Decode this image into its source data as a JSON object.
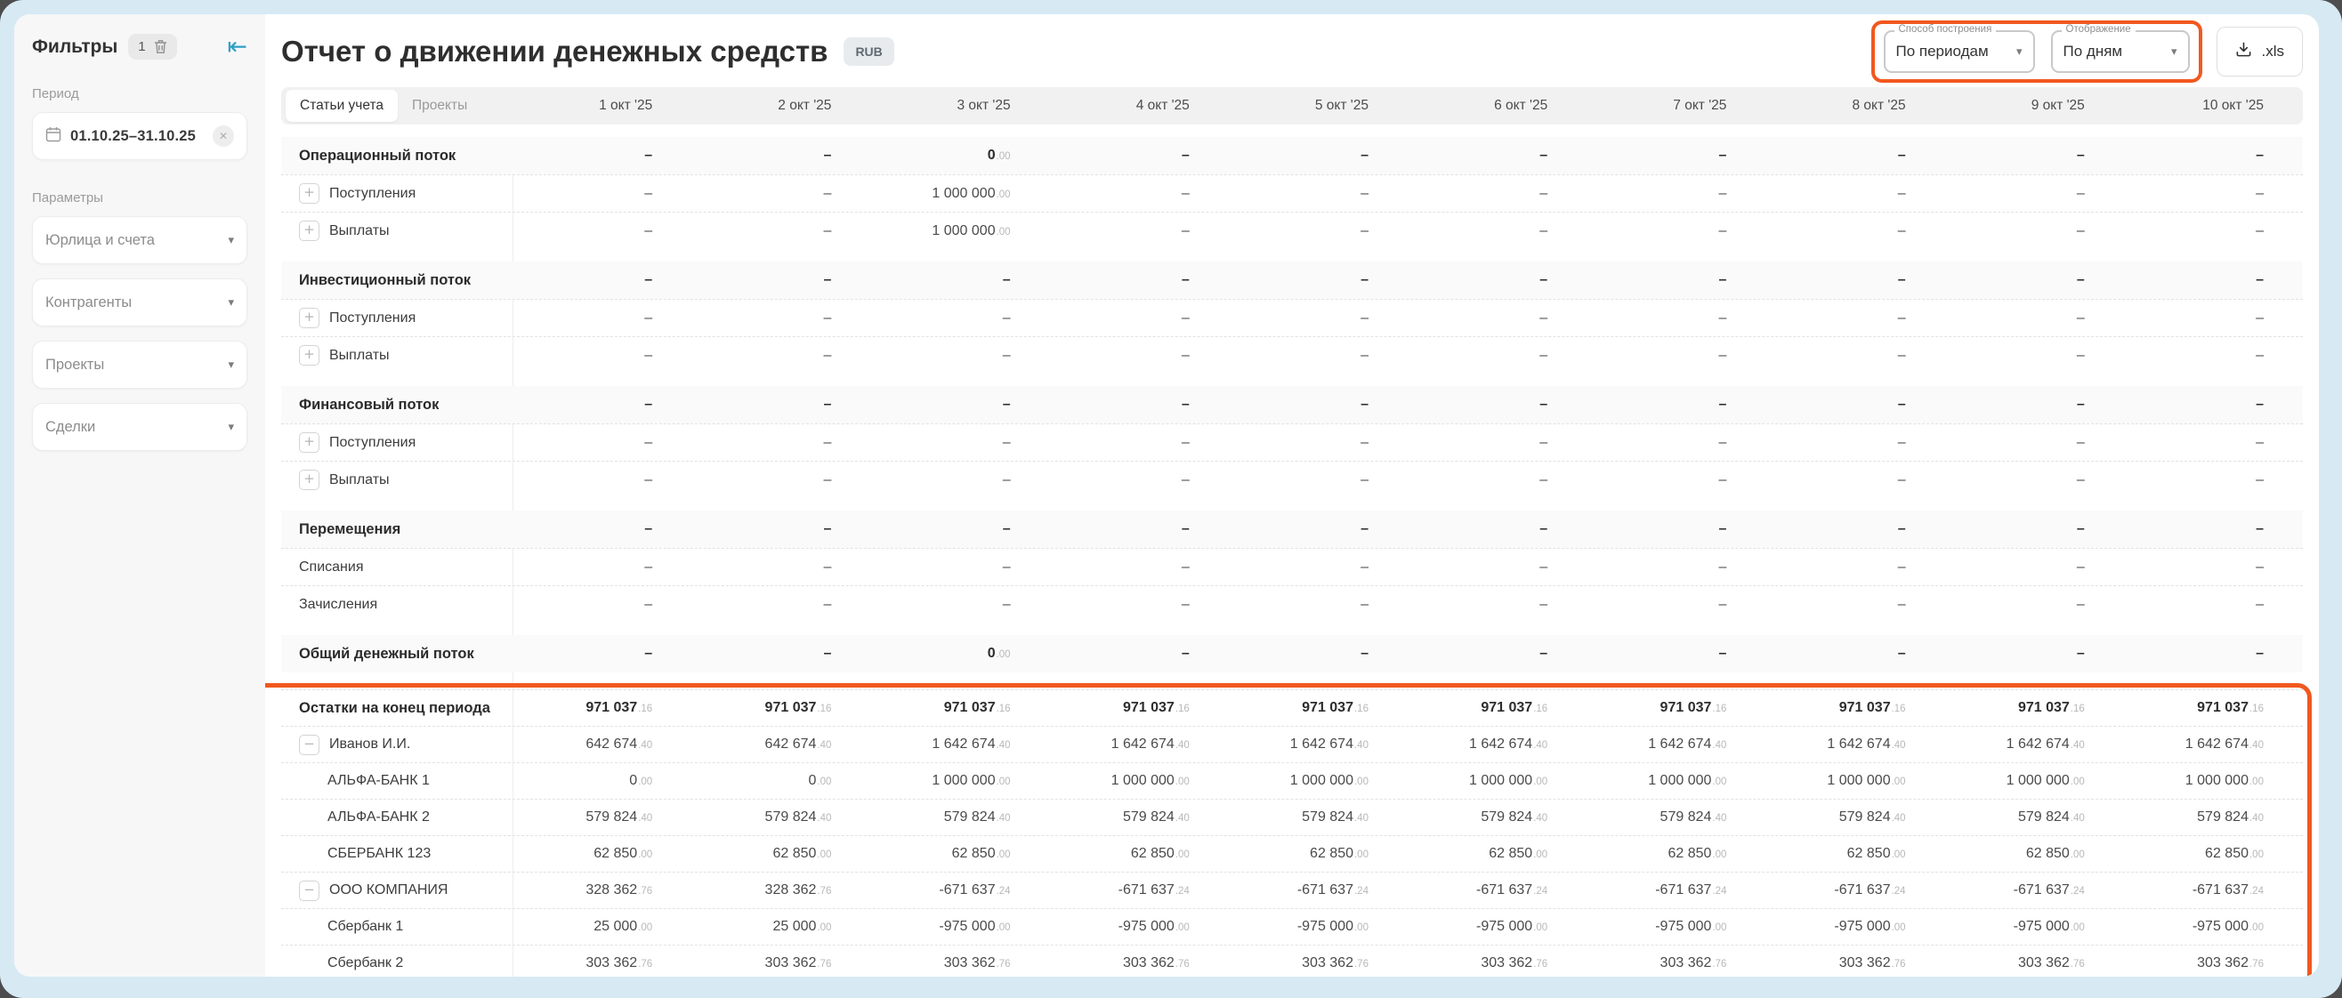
{
  "colors": {
    "accent_orange": "#F1581F",
    "accent_teal": "#2E9FC6",
    "frame_blue": "#D7EAF4"
  },
  "sidebar": {
    "title": "Фильтры",
    "filter_count": "1",
    "period_label": "Период",
    "period_value": "01.10.25–31.10.25",
    "params_label": "Параметры",
    "dropdowns": [
      "Юрлица и счета",
      "Контрагенты",
      "Проекты",
      "Сделки"
    ]
  },
  "header": {
    "title": "Отчет о движении денежных средств",
    "currency_badge": "RUB",
    "build_mode": {
      "label": "Способ построения",
      "value": "По периодам"
    },
    "display_mode": {
      "label": "Отображение",
      "value": "По дням"
    },
    "export_label": ".xls"
  },
  "table": {
    "tabs": [
      {
        "label": "Статьи учета",
        "active": true
      },
      {
        "label": "Проекты",
        "active": false
      }
    ],
    "columns": [
      "1 окт '25",
      "2 окт '25",
      "3 окт '25",
      "4 окт '25",
      "5 окт '25",
      "6 окт '25",
      "7 окт '25",
      "8 окт '25",
      "9 окт '25",
      "10 окт '25"
    ],
    "sections": [
      {
        "rows": [
          {
            "type": "header",
            "bold": true,
            "label": "Операционный поток",
            "icon": null,
            "indent": 0,
            "values": [
              "–",
              "–",
              "0.00",
              "–",
              "–",
              "–",
              "–",
              "–",
              "–",
              "–"
            ]
          },
          {
            "type": "item",
            "bold": false,
            "label": "Поступления",
            "icon": "plus",
            "indent": 0,
            "values": [
              "–",
              "–",
              "1 000 000.00",
              "–",
              "–",
              "–",
              "–",
              "–",
              "–",
              "–"
            ]
          },
          {
            "type": "item",
            "bold": false,
            "label": "Выплаты",
            "icon": "plus",
            "indent": 0,
            "values": [
              "–",
              "–",
              "1 000 000.00",
              "–",
              "–",
              "–",
              "–",
              "–",
              "–",
              "–"
            ]
          }
        ]
      },
      {
        "rows": [
          {
            "type": "header",
            "bold": true,
            "label": "Инвестиционный поток",
            "icon": null,
            "indent": 0,
            "values": [
              "–",
              "–",
              "–",
              "–",
              "–",
              "–",
              "–",
              "–",
              "–",
              "–"
            ]
          },
          {
            "type": "item",
            "bold": false,
            "label": "Поступления",
            "icon": "plus",
            "indent": 0,
            "values": [
              "–",
              "–",
              "–",
              "–",
              "–",
              "–",
              "–",
              "–",
              "–",
              "–"
            ]
          },
          {
            "type": "item",
            "bold": false,
            "label": "Выплаты",
            "icon": "plus",
            "indent": 0,
            "values": [
              "–",
              "–",
              "–",
              "–",
              "–",
              "–",
              "–",
              "–",
              "–",
              "–"
            ]
          }
        ]
      },
      {
        "rows": [
          {
            "type": "header",
            "bold": true,
            "label": "Финансовый поток",
            "icon": null,
            "indent": 0,
            "values": [
              "–",
              "–",
              "–",
              "–",
              "–",
              "–",
              "–",
              "–",
              "–",
              "–"
            ]
          },
          {
            "type": "item",
            "bold": false,
            "label": "Поступления",
            "icon": "plus",
            "indent": 0,
            "values": [
              "–",
              "–",
              "–",
              "–",
              "–",
              "–",
              "–",
              "–",
              "–",
              "–"
            ]
          },
          {
            "type": "item",
            "bold": false,
            "label": "Выплаты",
            "icon": "plus",
            "indent": 0,
            "values": [
              "–",
              "–",
              "–",
              "–",
              "–",
              "–",
              "–",
              "–",
              "–",
              "–"
            ]
          }
        ]
      },
      {
        "rows": [
          {
            "type": "header",
            "bold": true,
            "label": "Перемещения",
            "icon": null,
            "indent": 0,
            "values": [
              "–",
              "–",
              "–",
              "–",
              "–",
              "–",
              "–",
              "–",
              "–",
              "–"
            ]
          },
          {
            "type": "item",
            "bold": false,
            "label": "Списания",
            "icon": null,
            "indent": 0,
            "values": [
              "–",
              "–",
              "–",
              "–",
              "–",
              "–",
              "–",
              "–",
              "–",
              "–"
            ]
          },
          {
            "type": "item",
            "bold": false,
            "label": "Зачисления",
            "icon": null,
            "indent": 0,
            "values": [
              "–",
              "–",
              "–",
              "–",
              "–",
              "–",
              "–",
              "–",
              "–",
              "–"
            ]
          }
        ]
      },
      {
        "rows": [
          {
            "type": "header",
            "bold": true,
            "label": "Общий денежный поток",
            "icon": null,
            "indent": 0,
            "values": [
              "–",
              "–",
              "0.00",
              "–",
              "–",
              "–",
              "–",
              "–",
              "–",
              "–"
            ]
          }
        ]
      },
      {
        "highlight": true,
        "rows": [
          {
            "type": "header",
            "bold": true,
            "label": "Остатки на конец периода",
            "icon": null,
            "indent": 0,
            "values": [
              "971 037.16",
              "971 037.16",
              "971 037.16",
              "971 037.16",
              "971 037.16",
              "971 037.16",
              "971 037.16",
              "971 037.16",
              "971 037.16",
              "971 037.16"
            ]
          },
          {
            "type": "item",
            "bold": false,
            "label": "Иванов И.И.",
            "icon": "minus",
            "indent": 0,
            "values": [
              "642 674.40",
              "642 674.40",
              "1 642 674.40",
              "1 642 674.40",
              "1 642 674.40",
              "1 642 674.40",
              "1 642 674.40",
              "1 642 674.40",
              "1 642 674.40",
              "1 642 674.40"
            ]
          },
          {
            "type": "item",
            "bold": false,
            "label": "АЛЬФА-БАНК 1",
            "icon": null,
            "indent": 1,
            "values": [
              "0.00",
              "0.00",
              "1 000 000.00",
              "1 000 000.00",
              "1 000 000.00",
              "1 000 000.00",
              "1 000 000.00",
              "1 000 000.00",
              "1 000 000.00",
              "1 000 000.00"
            ]
          },
          {
            "type": "item",
            "bold": false,
            "label": "АЛЬФА-БАНК 2",
            "icon": null,
            "indent": 1,
            "values": [
              "579 824.40",
              "579 824.40",
              "579 824.40",
              "579 824.40",
              "579 824.40",
              "579 824.40",
              "579 824.40",
              "579 824.40",
              "579 824.40",
              "579 824.40"
            ]
          },
          {
            "type": "item",
            "bold": false,
            "label": "СБЕРБАНК 123",
            "icon": null,
            "indent": 1,
            "values": [
              "62 850.00",
              "62 850.00",
              "62 850.00",
              "62 850.00",
              "62 850.00",
              "62 850.00",
              "62 850.00",
              "62 850.00",
              "62 850.00",
              "62 850.00"
            ]
          },
          {
            "type": "item",
            "bold": false,
            "label": "ООО КОМПАНИЯ",
            "icon": "minus",
            "indent": 0,
            "values": [
              "328 362.76",
              "328 362.76",
              "-671 637.24",
              "-671 637.24",
              "-671 637.24",
              "-671 637.24",
              "-671 637.24",
              "-671 637.24",
              "-671 637.24",
              "-671 637.24"
            ]
          },
          {
            "type": "item",
            "bold": false,
            "label": "Сбербанк 1",
            "icon": null,
            "indent": 1,
            "values": [
              "25 000.00",
              "25 000.00",
              "-975 000.00",
              "-975 000.00",
              "-975 000.00",
              "-975 000.00",
              "-975 000.00",
              "-975 000.00",
              "-975 000.00",
              "-975 000.00"
            ]
          },
          {
            "type": "item",
            "bold": false,
            "label": "Сбербанк 2",
            "icon": null,
            "indent": 1,
            "values": [
              "303 362.76",
              "303 362.76",
              "303 362.76",
              "303 362.76",
              "303 362.76",
              "303 362.76",
              "303 362.76",
              "303 362.76",
              "303 362.76",
              "303 362.76"
            ]
          }
        ]
      }
    ]
  }
}
